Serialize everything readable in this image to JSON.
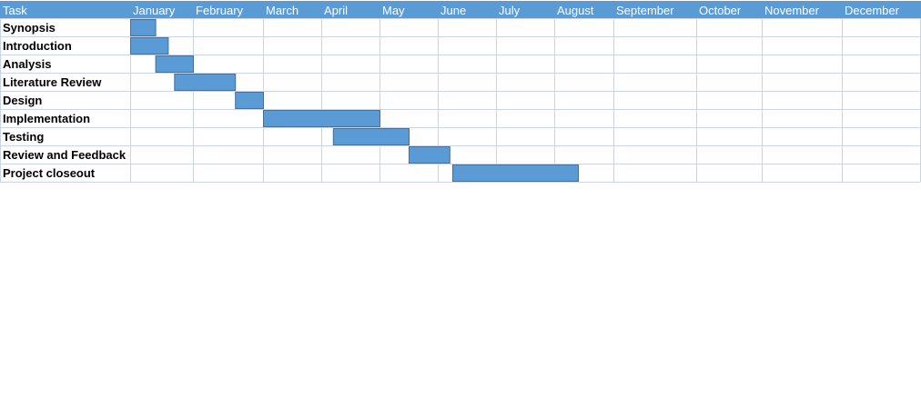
{
  "chart_data": {
    "type": "gantt",
    "title": "",
    "header_label": "Task",
    "months": [
      "January",
      "February",
      "March",
      "April",
      "May",
      "June",
      "July",
      "August",
      "September",
      "October",
      "November",
      "December"
    ],
    "tasks": [
      {
        "name": "Synopsis",
        "start": 0.0,
        "end": 0.4
      },
      {
        "name": "Introduction",
        "start": 0.0,
        "end": 0.6
      },
      {
        "name": "Analysis",
        "start": 0.4,
        "end": 1.0
      },
      {
        "name": "Literature Review",
        "start": 0.7,
        "end": 1.6
      },
      {
        "name": "Design",
        "start": 1.6,
        "end": 2.0
      },
      {
        "name": "Implementation",
        "start": 2.0,
        "end": 4.0
      },
      {
        "name": "Testing",
        "start": 3.2,
        "end": 4.5
      },
      {
        "name": "Review and Feedback",
        "start": 4.5,
        "end": 5.2
      },
      {
        "name": "Project closeout",
        "start": 5.25,
        "end": 7.4
      }
    ],
    "colors": {
      "header_bg": "#5b9bd5",
      "header_text": "#ffffff",
      "bar_fill": "#5b9bd5",
      "bar_stroke": "#41719c",
      "grid": "#c9d5e6"
    }
  }
}
